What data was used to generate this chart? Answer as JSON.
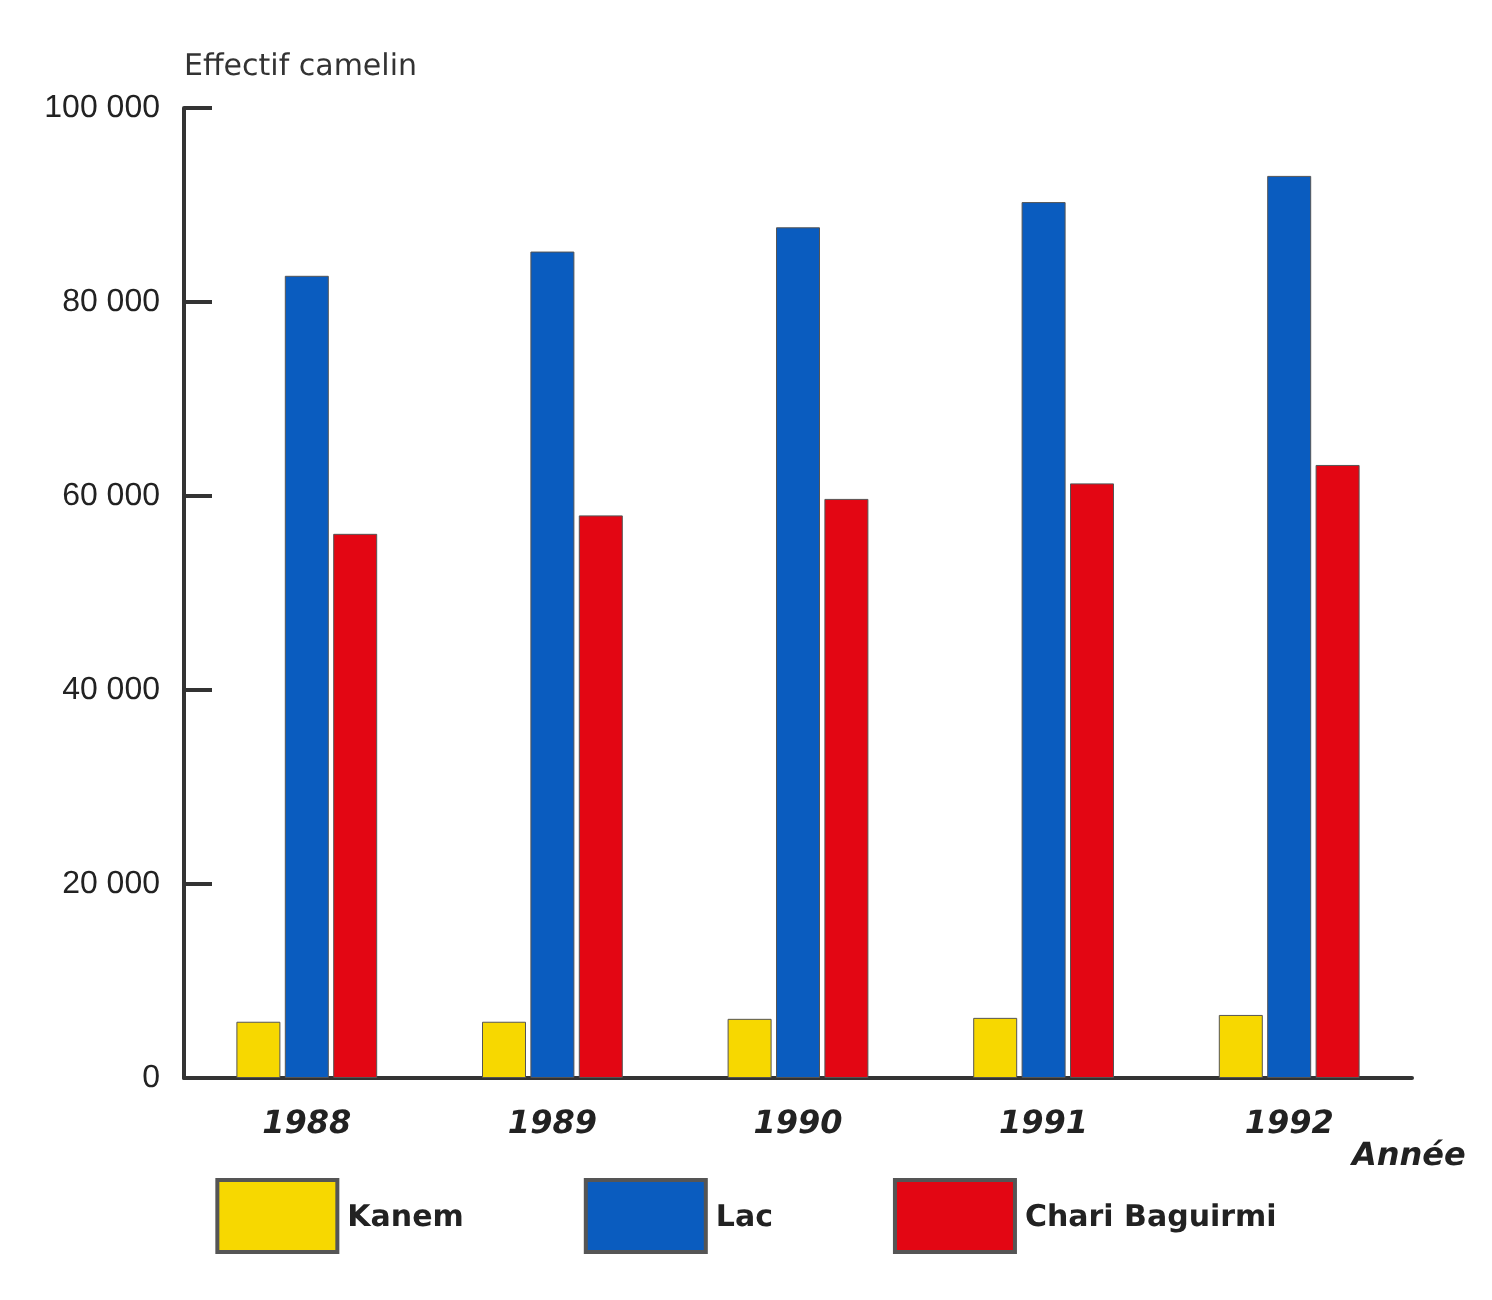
{
  "chart_data": {
    "type": "bar",
    "ylabel": "Effectif camelin",
    "xlabel": "Année",
    "categories": [
      "1988",
      "1989",
      "1990",
      "1991",
      "1992"
    ],
    "series": [
      {
        "name": "Kanem",
        "color": "#f7d800",
        "values": [
          5800,
          5800,
          6100,
          6200,
          6500
        ]
      },
      {
        "name": "Lac",
        "color": "#0a5cbf",
        "values": [
          82700,
          85200,
          87700,
          90300,
          93000
        ]
      },
      {
        "name": "Chari Baguirmi",
        "color": "#e30613",
        "values": [
          56100,
          58000,
          59700,
          61300,
          63200
        ]
      }
    ],
    "ylim": [
      0,
      100000
    ],
    "yticks": [
      {
        "value": 0,
        "label": "0"
      },
      {
        "value": 20000,
        "label": "20 000"
      },
      {
        "value": 40000,
        "label": "40 000"
      },
      {
        "value": 60000,
        "label": "60 000"
      },
      {
        "value": 80000,
        "label": "80 000"
      },
      {
        "value": 100000,
        "label": "100 000"
      }
    ],
    "grid": false,
    "legend": "bottom"
  }
}
